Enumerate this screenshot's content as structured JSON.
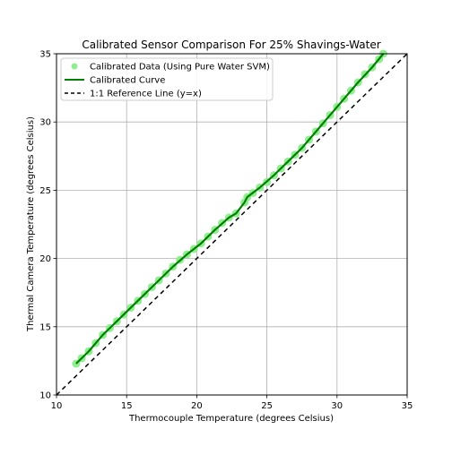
{
  "chart_data": {
    "type": "scatter",
    "title": "Calibrated Sensor Comparison For 25% Shavings-Water",
    "xlabel": "Thermocouple Temperature (degrees Celsius)",
    "ylabel": "Thermal Camera Temperature (degrees Celsius)",
    "xlim": [
      10,
      35
    ],
    "ylim": [
      10,
      35
    ],
    "x_ticks": [
      "10",
      "15",
      "20",
      "25",
      "30",
      "35"
    ],
    "y_ticks": [
      "10",
      "15",
      "20",
      "25",
      "30",
      "35"
    ],
    "grid": true,
    "legend_position": "top-left",
    "colors": {
      "scatter": "#90ee90",
      "curve": "#008000",
      "reference": "#000000"
    },
    "series": [
      {
        "name": "Calibrated Data (Using Pure Water SVM)",
        "kind": "scatter",
        "x": [
          11.4,
          11.8,
          12.3,
          12.8,
          13.3,
          13.8,
          14.3,
          14.8,
          15.3,
          15.8,
          16.3,
          16.8,
          17.3,
          17.8,
          18.3,
          18.8,
          19.3,
          19.8,
          20.3,
          20.8,
          21.3,
          21.8,
          22.3,
          22.8,
          23.4,
          23.6,
          24.0,
          24.5,
          25.0,
          25.5,
          26.0,
          26.5,
          27.0,
          27.5,
          28.0,
          28.5,
          29.0,
          29.5,
          30.0,
          30.5,
          31.0,
          31.5,
          32.0,
          32.5,
          33.0,
          33.3
        ],
        "y": [
          12.3,
          12.7,
          13.2,
          13.8,
          14.4,
          14.9,
          15.4,
          15.9,
          16.4,
          16.9,
          17.4,
          17.9,
          18.4,
          18.9,
          19.4,
          19.9,
          20.3,
          20.7,
          21.1,
          21.6,
          22.1,
          22.6,
          23.0,
          23.3,
          24.1,
          24.5,
          24.8,
          25.2,
          25.6,
          26.1,
          26.6,
          27.1,
          27.6,
          28.1,
          28.7,
          29.3,
          29.9,
          30.5,
          31.1,
          31.7,
          32.3,
          32.9,
          33.5,
          34.0,
          34.6,
          35.0
        ]
      },
      {
        "name": "Calibrated Curve",
        "kind": "line",
        "x": [
          11.4,
          12.3,
          13.3,
          14.3,
          15.3,
          16.3,
          17.3,
          18.3,
          19.3,
          20.3,
          21.3,
          22.3,
          22.8,
          23.4,
          23.6,
          24.5,
          25.5,
          26.5,
          27.5,
          28.5,
          29.5,
          30.5,
          31.5,
          32.5,
          33.3
        ],
        "y": [
          12.3,
          13.2,
          14.4,
          15.4,
          16.4,
          17.4,
          18.4,
          19.4,
          20.3,
          21.1,
          22.1,
          23.0,
          23.3,
          24.1,
          24.5,
          25.2,
          26.1,
          27.1,
          28.1,
          29.3,
          30.5,
          31.7,
          32.9,
          34.0,
          35.0
        ]
      },
      {
        "name": "1:1 Reference Line (y=x)",
        "kind": "reference",
        "x": [
          10,
          35
        ],
        "y": [
          10,
          35
        ]
      }
    ]
  }
}
